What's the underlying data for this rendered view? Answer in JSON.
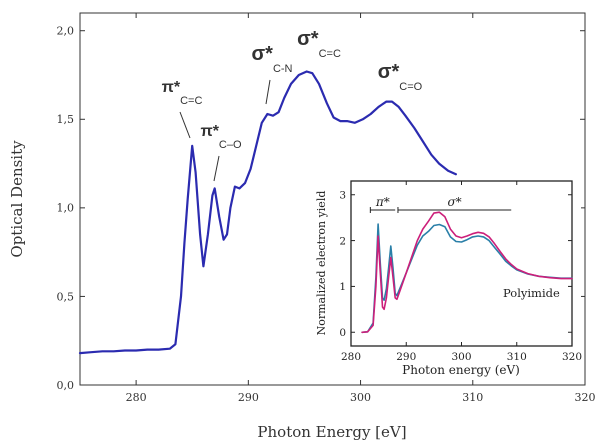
{
  "chart_data": [
    {
      "type": "line",
      "xlabel": "Photon Energy [eV]",
      "ylabel": "Optical Density",
      "xlim": [
        275,
        320
      ],
      "ylim": [
        0,
        2.1
      ],
      "x_ticks": [
        "280",
        "290",
        "300",
        "310",
        "320"
      ],
      "x_tick_values": [
        280,
        290,
        300,
        310,
        320
      ],
      "y_ticks": [
        "0,0",
        "0,5",
        "1,0",
        "1,5",
        "2,0"
      ],
      "y_tick_values": [
        0,
        0.5,
        1.0,
        1.5,
        2.0
      ],
      "series": [
        {
          "color": "#2b2bb0",
          "points": [
            [
              275,
              0.18
            ],
            [
              276,
              0.185
            ],
            [
              277,
              0.19
            ],
            [
              278,
              0.19
            ],
            [
              279,
              0.195
            ],
            [
              280,
              0.195
            ],
            [
              281,
              0.2
            ],
            [
              282,
              0.2
            ],
            [
              283,
              0.205
            ],
            [
              283.5,
              0.23
            ],
            [
              284.0,
              0.5
            ],
            [
              284.3,
              0.8
            ],
            [
              284.6,
              1.05
            ],
            [
              285.0,
              1.35
            ],
            [
              285.3,
              1.2
            ],
            [
              285.7,
              0.85
            ],
            [
              286.0,
              0.67
            ],
            [
              286.4,
              0.85
            ],
            [
              286.8,
              1.07
            ],
            [
              287.0,
              1.11
            ],
            [
              287.4,
              0.95
            ],
            [
              287.8,
              0.82
            ],
            [
              288.1,
              0.85
            ],
            [
              288.4,
              1.0
            ],
            [
              288.8,
              1.12
            ],
            [
              289.2,
              1.11
            ],
            [
              289.7,
              1.14
            ],
            [
              290.2,
              1.22
            ],
            [
              290.7,
              1.35
            ],
            [
              291.2,
              1.48
            ],
            [
              291.7,
              1.53
            ],
            [
              292.2,
              1.52
            ],
            [
              292.7,
              1.54
            ],
            [
              293.2,
              1.62
            ],
            [
              293.8,
              1.7
            ],
            [
              294.5,
              1.75
            ],
            [
              295.2,
              1.77
            ],
            [
              295.7,
              1.76
            ],
            [
              296.3,
              1.7
            ],
            [
              297.0,
              1.59
            ],
            [
              297.6,
              1.51
            ],
            [
              298.2,
              1.49
            ],
            [
              298.8,
              1.49
            ],
            [
              299.5,
              1.48
            ],
            [
              300.2,
              1.5
            ],
            [
              300.9,
              1.53
            ],
            [
              301.6,
              1.57
            ],
            [
              302.3,
              1.6
            ],
            [
              302.8,
              1.6
            ],
            [
              303.4,
              1.57
            ],
            [
              304.0,
              1.52
            ],
            [
              304.8,
              1.45
            ],
            [
              305.5,
              1.38
            ],
            [
              306.3,
              1.3
            ],
            [
              307.0,
              1.25
            ],
            [
              307.8,
              1.21
            ],
            [
              308.5,
              1.19
            ]
          ]
        }
      ],
      "annotations": [
        {
          "main": "π*",
          "sub": "C=C",
          "x": 285.0,
          "y": 1.35
        },
        {
          "main": "π*",
          "sub": "C–O",
          "x": 287.0,
          "y": 1.11
        },
        {
          "main": "σ*",
          "sub": "C-N",
          "x": 291.7,
          "y": 1.53
        },
        {
          "main": "σ*",
          "sub": "C=C",
          "x": 295.2,
          "y": 1.77
        },
        {
          "main": "σ*",
          "sub": "C=O",
          "x": 302.5,
          "y": 1.6
        }
      ]
    },
    {
      "type": "line",
      "xlabel": "Photon energy (eV)",
      "ylabel": "Normalized electron yield",
      "xlim": [
        280,
        320
      ],
      "ylim": [
        -0.3,
        3.3
      ],
      "x_ticks": [
        "280",
        "290",
        "300",
        "310",
        "320"
      ],
      "x_tick_values": [
        280,
        290,
        300,
        310,
        320
      ],
      "y_ticks": [
        "0",
        "1",
        "2",
        "3"
      ],
      "y_tick_values": [
        0,
        1,
        2,
        3
      ],
      "label": "Polyimide",
      "bands": [
        {
          "label": "π*",
          "x_from": 283.5,
          "x_to": 288
        },
        {
          "label": "σ*",
          "x_from": 288.5,
          "x_to": 309
        }
      ],
      "series": [
        {
          "color": "#2a7fa8",
          "points": [
            [
              282,
              0
            ],
            [
              283,
              0.01
            ],
            [
              284,
              0.2
            ],
            [
              284.5,
              1.2
            ],
            [
              284.9,
              2.36
            ],
            [
              285.3,
              1.5
            ],
            [
              285.7,
              0.75
            ],
            [
              286.0,
              0.7
            ],
            [
              286.4,
              0.95
            ],
            [
              286.8,
              1.4
            ],
            [
              287.2,
              1.88
            ],
            [
              287.6,
              1.4
            ],
            [
              288.0,
              0.85
            ],
            [
              288.3,
              0.8
            ],
            [
              289.0,
              1.0
            ],
            [
              290.0,
              1.3
            ],
            [
              291.0,
              1.6
            ],
            [
              292.0,
              1.9
            ],
            [
              293.0,
              2.1
            ],
            [
              294.0,
              2.2
            ],
            [
              295.0,
              2.33
            ],
            [
              296.0,
              2.35
            ],
            [
              297.0,
              2.3
            ],
            [
              298.0,
              2.08
            ],
            [
              299.0,
              1.98
            ],
            [
              300.0,
              1.97
            ],
            [
              301.0,
              2.02
            ],
            [
              302.0,
              2.08
            ],
            [
              303.0,
              2.1
            ],
            [
              304.0,
              2.08
            ],
            [
              305.0,
              2.0
            ],
            [
              306.0,
              1.85
            ],
            [
              307.0,
              1.7
            ],
            [
              308.0,
              1.55
            ],
            [
              309.0,
              1.45
            ],
            [
              310.0,
              1.36
            ],
            [
              312.0,
              1.27
            ],
            [
              314.0,
              1.22
            ],
            [
              316.0,
              1.2
            ],
            [
              318.0,
              1.18
            ],
            [
              320.0,
              1.18
            ]
          ]
        },
        {
          "color": "#cc1f7a",
          "points": [
            [
              282,
              0
            ],
            [
              283,
              0.01
            ],
            [
              284,
              0.15
            ],
            [
              284.5,
              1.0
            ],
            [
              284.9,
              2.1
            ],
            [
              285.3,
              1.3
            ],
            [
              285.7,
              0.55
            ],
            [
              286.0,
              0.5
            ],
            [
              286.4,
              0.75
            ],
            [
              286.8,
              1.2
            ],
            [
              287.2,
              1.63
            ],
            [
              287.6,
              1.2
            ],
            [
              288.0,
              0.75
            ],
            [
              288.3,
              0.72
            ],
            [
              289.0,
              0.95
            ],
            [
              290.0,
              1.3
            ],
            [
              291.0,
              1.65
            ],
            [
              292.0,
              2.0
            ],
            [
              293.0,
              2.25
            ],
            [
              294.0,
              2.42
            ],
            [
              295.0,
              2.6
            ],
            [
              296.0,
              2.62
            ],
            [
              297.0,
              2.52
            ],
            [
              298.0,
              2.25
            ],
            [
              299.0,
              2.1
            ],
            [
              300.0,
              2.06
            ],
            [
              301.0,
              2.1
            ],
            [
              302.0,
              2.15
            ],
            [
              303.0,
              2.18
            ],
            [
              304.0,
              2.16
            ],
            [
              305.0,
              2.08
            ],
            [
              306.0,
              1.93
            ],
            [
              307.0,
              1.76
            ],
            [
              308.0,
              1.6
            ],
            [
              309.0,
              1.48
            ],
            [
              310.0,
              1.38
            ],
            [
              312.0,
              1.28
            ],
            [
              314.0,
              1.22
            ],
            [
              316.0,
              1.19
            ],
            [
              318.0,
              1.17
            ],
            [
              320.0,
              1.17
            ]
          ]
        }
      ]
    }
  ]
}
